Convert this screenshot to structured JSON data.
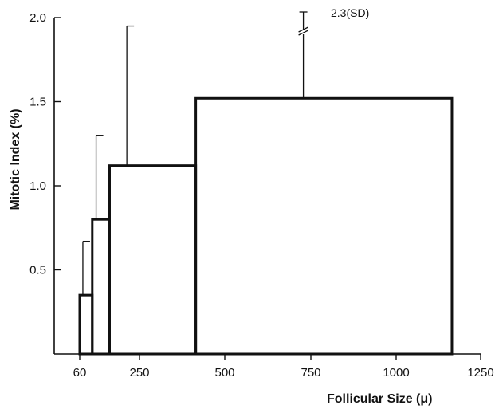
{
  "chart_data": {
    "type": "bar",
    "subtype": "histogram-with-error-bars",
    "xlabel": "Follicular Size (μ)",
    "ylabel": "Mitotic Index (%)",
    "xlim": [
      0,
      1250
    ],
    "ylim": [
      0,
      2.0
    ],
    "x_ticks": [
      {
        "value": 60,
        "label": "60"
      },
      {
        "value": 250,
        "label": "250"
      },
      {
        "value": 500,
        "label": "500"
      },
      {
        "value": 750,
        "label": "750"
      },
      {
        "value": 1000,
        "label": "1000"
      },
      {
        "value": 1250,
        "label": "1250"
      }
    ],
    "y_ticks": [
      {
        "value": 0.5,
        "label": "0.5"
      },
      {
        "value": 1.0,
        "label": "1.0"
      },
      {
        "value": 1.5,
        "label": "1.5"
      },
      {
        "value": 2.0,
        "label": "2.0"
      }
    ],
    "bars": [
      {
        "x_start": 60,
        "x_end": 100,
        "value": 0.35,
        "error_top": 0.67
      },
      {
        "x_start": 100,
        "x_end": 155,
        "value": 0.8,
        "error_top": 1.3
      },
      {
        "x_start": 155,
        "x_end": 415,
        "value": 1.12,
        "error_top": 1.95
      },
      {
        "x_start": 415,
        "x_end": 1165,
        "value": 1.52,
        "error_top": 2.3,
        "error_broken": true
      }
    ],
    "annotations": [
      {
        "text": "2.3(SD)"
      }
    ],
    "grid": false
  }
}
